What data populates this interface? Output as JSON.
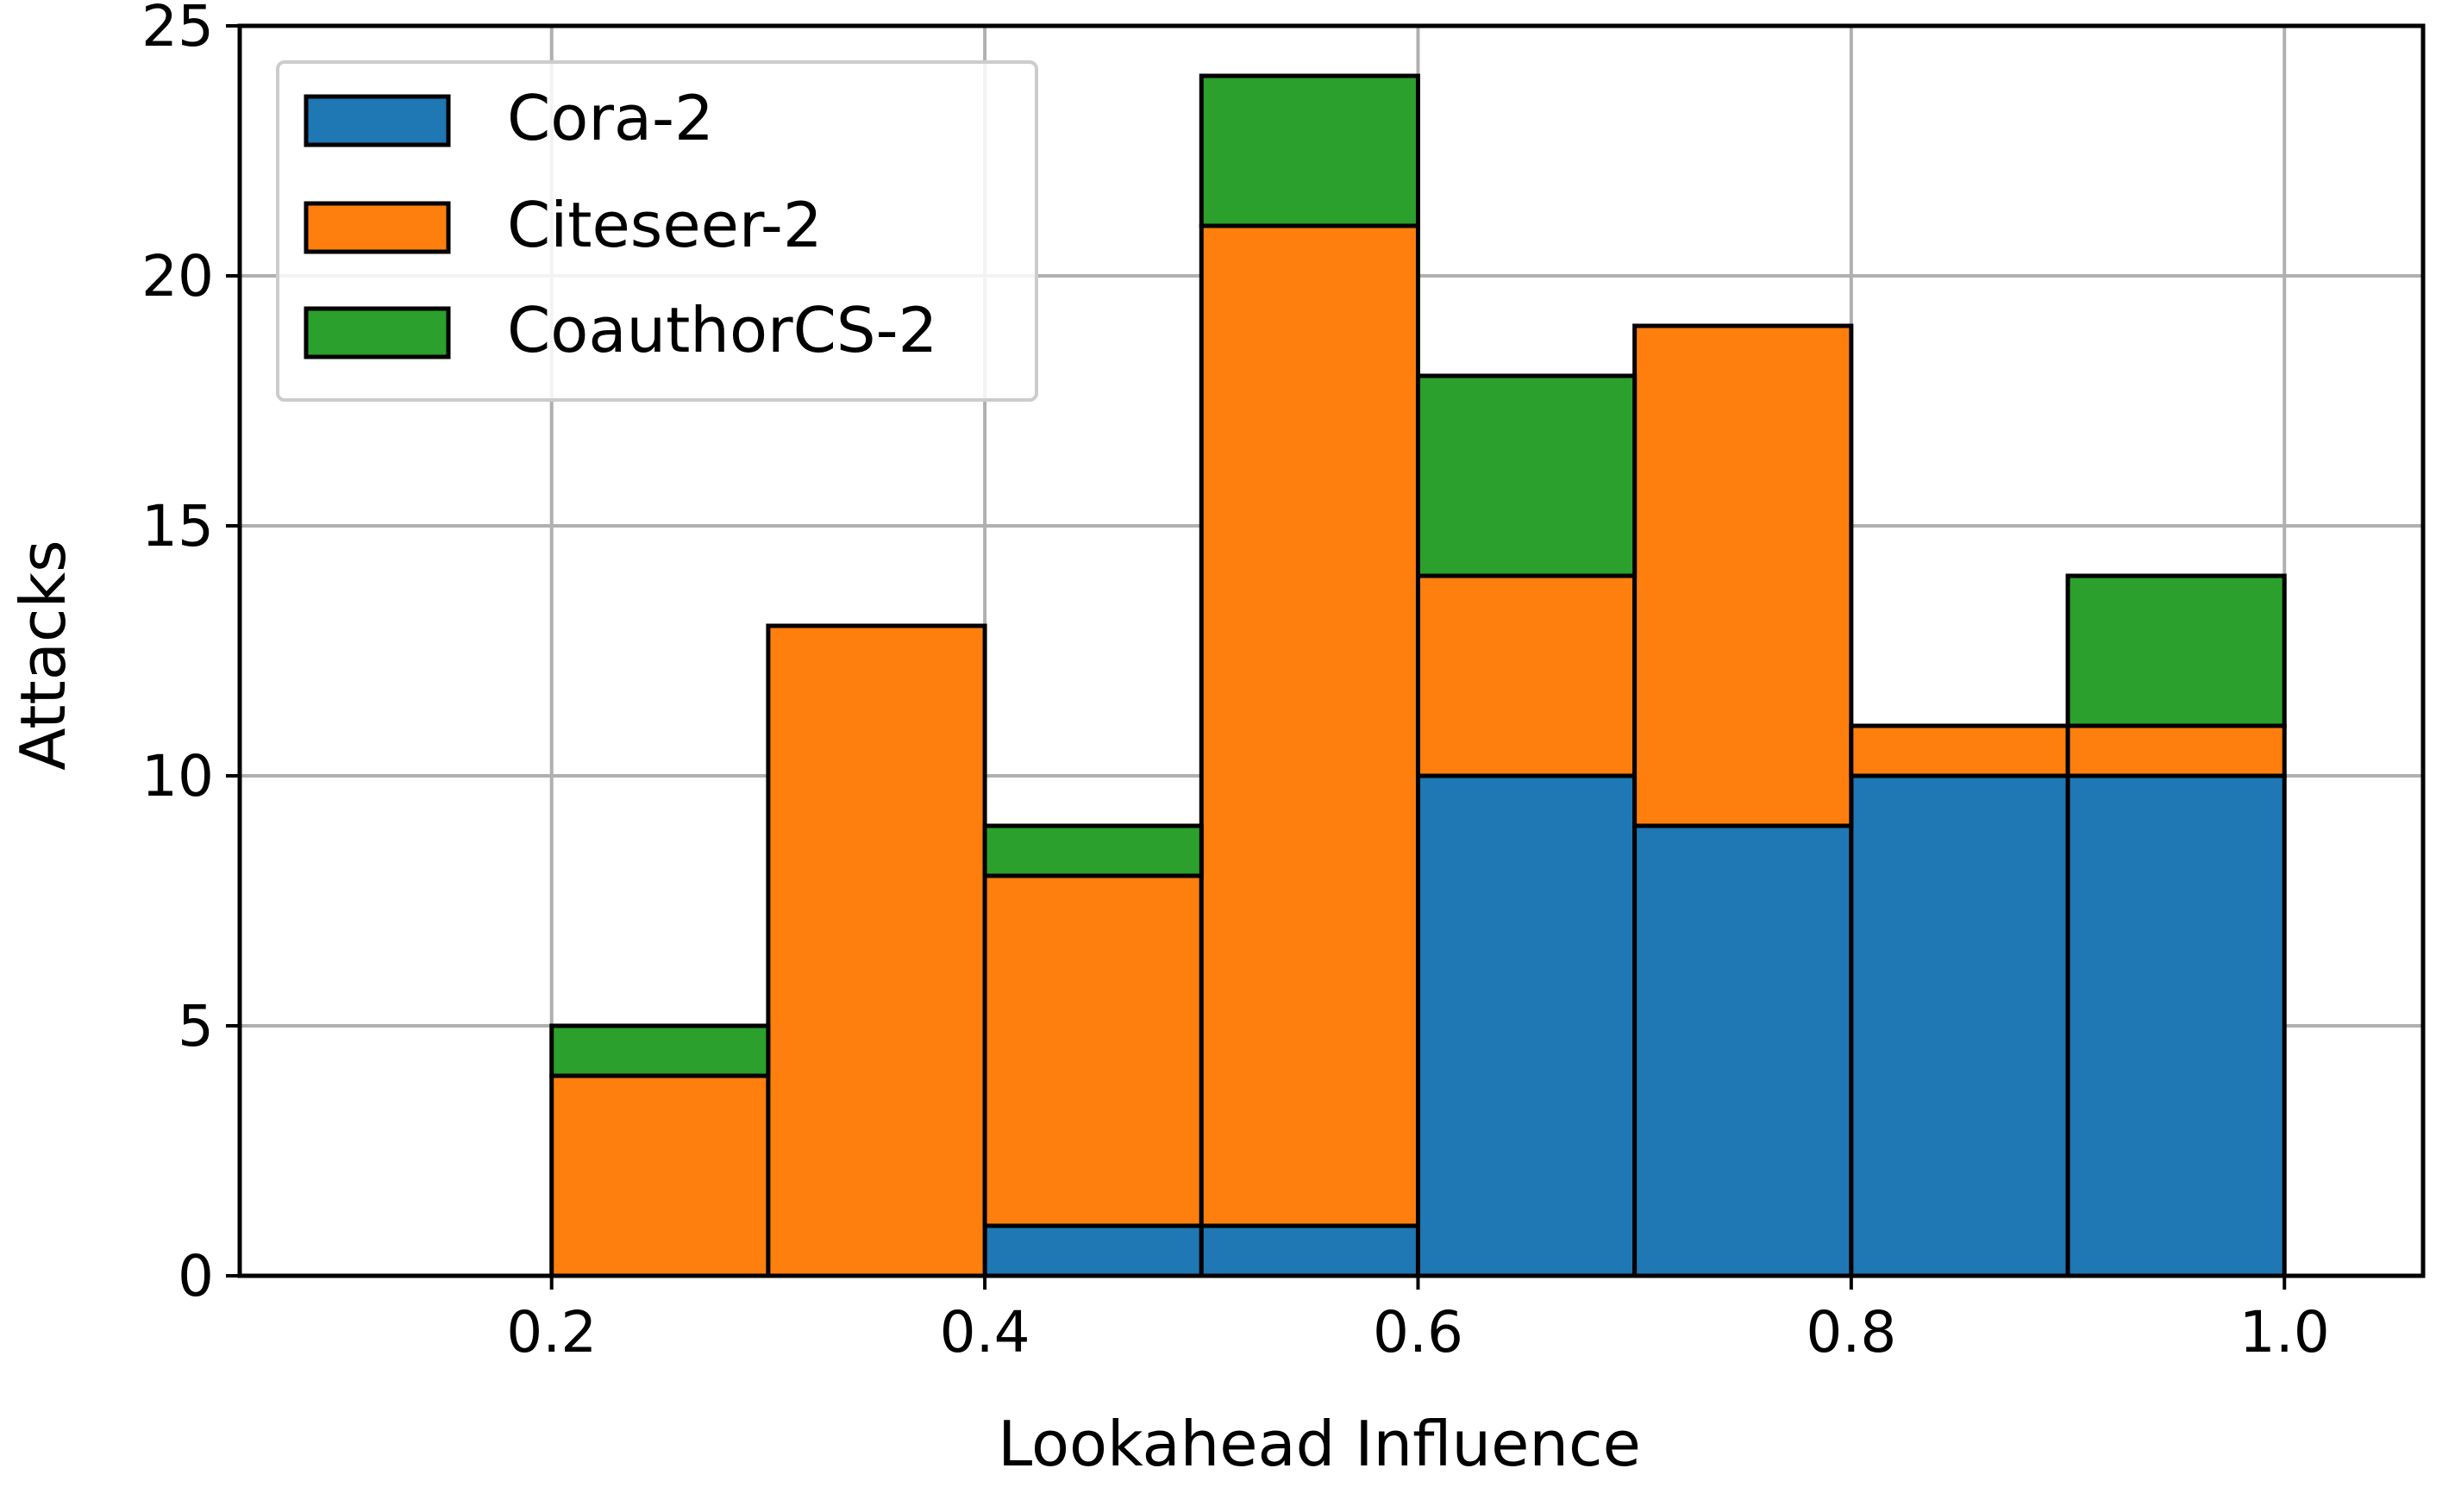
{
  "chart_data": {
    "type": "bar",
    "stacked": true,
    "histogram": true,
    "xlabel": "Lookahead Influence",
    "ylabel": "Attacks",
    "xlim": [
      0.056,
      1.064
    ],
    "ylim": [
      0,
      25
    ],
    "grid": true,
    "legend_position": "top-left",
    "bin_edges": [
      0.2,
      0.3,
      0.4,
      0.5,
      0.6,
      0.7,
      0.8,
      0.9,
      1.0
    ],
    "x_ticks": [
      "0.2",
      "0.4",
      "0.6",
      "0.8",
      "1.0"
    ],
    "x_tick_values": [
      0.2,
      0.4,
      0.6,
      0.8,
      1.0
    ],
    "y_ticks": [
      "0",
      "5",
      "10",
      "15",
      "20",
      "25"
    ],
    "y_tick_values": [
      0,
      5,
      10,
      15,
      20,
      25
    ],
    "series": [
      {
        "name": "Cora-2",
        "color": "#1f77b4",
        "values": [
          0,
          0,
          1,
          1,
          10,
          9,
          10,
          10
        ]
      },
      {
        "name": "Citeseer-2",
        "color": "#ff7f0e",
        "values": [
          4,
          13,
          7,
          20,
          4,
          10,
          1,
          1
        ]
      },
      {
        "name": "CoauthorCS-2",
        "color": "#2ca02c",
        "values": [
          1,
          0,
          1,
          3,
          4,
          0,
          0,
          3
        ]
      }
    ]
  }
}
